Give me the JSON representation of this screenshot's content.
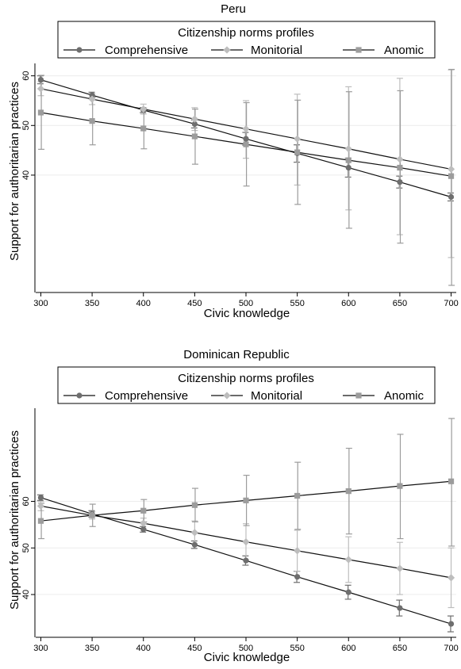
{
  "chart_data": [
    {
      "type": "line",
      "title": "Peru",
      "xlabel": "Civic knowledge",
      "ylabel": "Support for authoritarian practices",
      "legend_title": "Citizenship norms profiles",
      "legend_placement": "top",
      "x": [
        300,
        350,
        400,
        450,
        500,
        550,
        600,
        650,
        700
      ],
      "xticks": [
        300,
        350,
        400,
        450,
        500,
        550,
        600,
        650,
        700
      ],
      "yticks": [
        40,
        50,
        60
      ],
      "xlim": [
        295,
        705
      ],
      "ylim": [
        17,
        62.5
      ],
      "grid": true,
      "series": [
        {
          "name": "Comprehensive",
          "color": "#6e6e6e",
          "marker": "circle",
          "values": [
            59.2,
            56.1,
            53.1,
            50.3,
            47.3,
            44.4,
            41.5,
            38.6,
            35.6
          ],
          "ci_low": [
            58.4,
            55.5,
            52.6,
            49.5,
            46.0,
            42.6,
            39.6,
            37.4,
            34.8
          ],
          "ci_high": [
            60.0,
            56.7,
            53.6,
            51.1,
            48.6,
            46.1,
            43.4,
            39.8,
            36.4
          ]
        },
        {
          "name": "Monitorial",
          "color": "#bdbdbd",
          "marker": "diamond",
          "values": [
            57.4,
            55.3,
            53.3,
            51.3,
            49.3,
            47.3,
            45.3,
            43.2,
            41.2
          ],
          "ci_low": [
            56.0,
            54.2,
            52.3,
            49.0,
            43.4,
            38.0,
            33.0,
            28.0,
            23.4
          ],
          "ci_high": [
            58.8,
            56.4,
            54.3,
            53.6,
            55.0,
            56.3,
            57.8,
            59.5,
            61.2
          ]
        },
        {
          "name": "Anomic",
          "color": "#9c9c9c",
          "marker": "square",
          "values": [
            52.6,
            50.9,
            49.4,
            47.8,
            46.2,
            44.6,
            43.0,
            41.5,
            39.8
          ],
          "ci_low": [
            45.2,
            46.1,
            45.3,
            42.2,
            37.8,
            34.1,
            29.3,
            26.3,
            17.8
          ],
          "ci_high": [
            60.1,
            55.7,
            53.5,
            53.3,
            54.6,
            55.1,
            56.8,
            57.0,
            61.3
          ]
        }
      ]
    },
    {
      "type": "line",
      "title": "Dominican Republic",
      "xlabel": "Civic knowledge",
      "ylabel": "Support for authoritarian practices",
      "legend_title": "Citizenship norms profiles",
      "legend_placement": "top",
      "x": [
        300,
        350,
        400,
        450,
        500,
        550,
        600,
        650,
        700
      ],
      "xticks": [
        300,
        350,
        400,
        450,
        500,
        550,
        600,
        650,
        700
      ],
      "yticks": [
        40,
        50,
        60
      ],
      "xlim": [
        295,
        705
      ],
      "ylim": [
        31.5,
        80
      ],
      "grid": true,
      "series": [
        {
          "name": "Comprehensive",
          "color": "#6e6e6e",
          "marker": "circle",
          "values": [
            60.8,
            57.3,
            54.0,
            50.7,
            47.3,
            43.8,
            40.5,
            37.1,
            33.7
          ],
          "ci_low": [
            60.2,
            56.6,
            53.4,
            49.9,
            46.3,
            42.6,
            39.0,
            35.4,
            32.0
          ],
          "ci_high": [
            61.4,
            58.0,
            54.6,
            51.5,
            48.3,
            45.0,
            42.0,
            38.8,
            35.4
          ]
        },
        {
          "name": "Monitorial",
          "color": "#bdbdbd",
          "marker": "diamond",
          "values": [
            59.0,
            57.0,
            55.3,
            53.3,
            51.3,
            49.4,
            47.5,
            45.6,
            43.6
          ],
          "ci_low": [
            58.0,
            56.2,
            54.2,
            50.8,
            47.4,
            45.0,
            42.6,
            40.0,
            37.2
          ],
          "ci_high": [
            60.0,
            57.8,
            56.4,
            55.8,
            55.2,
            53.8,
            52.4,
            51.2,
            50.0
          ]
        },
        {
          "name": "Anomic",
          "color": "#9c9c9c",
          "marker": "square",
          "values": [
            55.8,
            57.0,
            58.0,
            59.2,
            60.2,
            61.2,
            62.2,
            63.3,
            64.3
          ],
          "ci_low": [
            52.0,
            54.6,
            55.6,
            55.6,
            54.8,
            54.0,
            53.0,
            52.0,
            50.4
          ],
          "ci_high": [
            59.6,
            59.4,
            60.4,
            62.8,
            65.6,
            68.4,
            71.4,
            74.4,
            77.8
          ]
        }
      ]
    }
  ]
}
